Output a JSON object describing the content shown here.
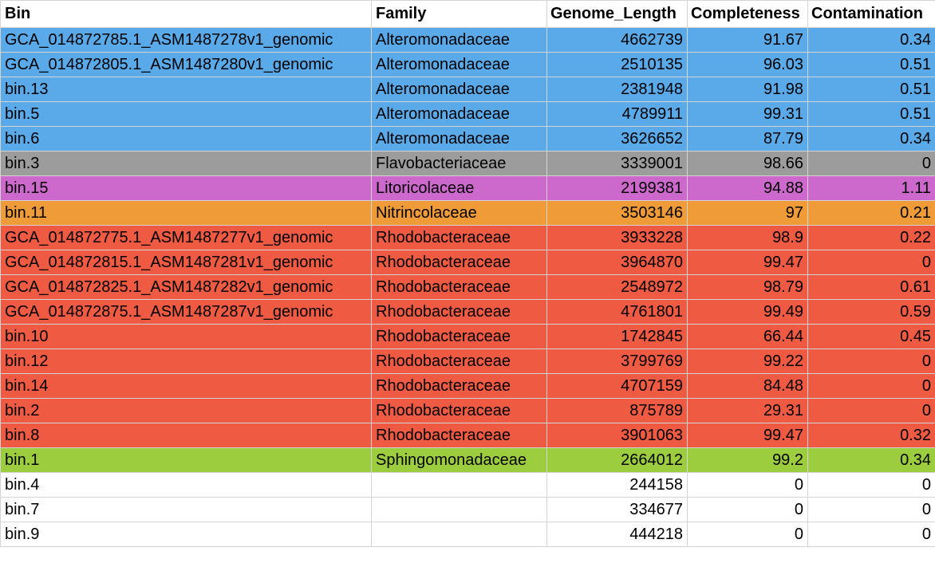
{
  "columns": [
    "Bin",
    "Family",
    "Genome_Length",
    "Completeness",
    "Contamination"
  ],
  "colors": {
    "Alteromonadaceae": "#5aaaea",
    "Flavobacteriaceae": "#9c9c9c",
    "Litoricolaceae": "#cd69cd",
    "Nitrincolaceae": "#ef9b37",
    "Rhodobacteraceae": "#ee5a42",
    "Sphingomonadaceae": "#9ccd3e",
    "none": "#ffffff"
  },
  "rows": [
    {
      "bin": "GCA_014872785.1_ASM1487278v1_genomic",
      "family": "Alteromonadaceae",
      "genome_length": "4662739",
      "completeness": "91.67",
      "contamination": "0.34",
      "color": "#5aaaea"
    },
    {
      "bin": "GCA_014872805.1_ASM1487280v1_genomic",
      "family": "Alteromonadaceae",
      "genome_length": "2510135",
      "completeness": "96.03",
      "contamination": "0.51",
      "color": "#5aaaea"
    },
    {
      "bin": "bin.13",
      "family": "Alteromonadaceae",
      "genome_length": "2381948",
      "completeness": "91.98",
      "contamination": "0.51",
      "color": "#5aaaea"
    },
    {
      "bin": "bin.5",
      "family": "Alteromonadaceae",
      "genome_length": "4789911",
      "completeness": "99.31",
      "contamination": "0.51",
      "color": "#5aaaea"
    },
    {
      "bin": "bin.6",
      "family": "Alteromonadaceae",
      "genome_length": "3626652",
      "completeness": "87.79",
      "contamination": "0.34",
      "color": "#5aaaea"
    },
    {
      "bin": "bin.3",
      "family": "Flavobacteriaceae",
      "genome_length": "3339001",
      "completeness": "98.66",
      "contamination": "0",
      "color": "#9c9c9c"
    },
    {
      "bin": "bin.15",
      "family": "Litoricolaceae",
      "genome_length": "2199381",
      "completeness": "94.88",
      "contamination": "1.11",
      "color": "#cd69cd"
    },
    {
      "bin": "bin.11",
      "family": "Nitrincolaceae",
      "genome_length": "3503146",
      "completeness": "97",
      "contamination": "0.21",
      "color": "#ef9b37"
    },
    {
      "bin": "GCA_014872775.1_ASM1487277v1_genomic",
      "family": "Rhodobacteraceae",
      "genome_length": "3933228",
      "completeness": "98.9",
      "contamination": "0.22",
      "color": "#ee5a42"
    },
    {
      "bin": "GCA_014872815.1_ASM1487281v1_genomic",
      "family": "Rhodobacteraceae",
      "genome_length": "3964870",
      "completeness": "99.47",
      "contamination": "0",
      "color": "#ee5a42"
    },
    {
      "bin": "GCA_014872825.1_ASM1487282v1_genomic",
      "family": "Rhodobacteraceae",
      "genome_length": "2548972",
      "completeness": "98.79",
      "contamination": "0.61",
      "color": "#ee5a42"
    },
    {
      "bin": "GCA_014872875.1_ASM1487287v1_genomic",
      "family": "Rhodobacteraceae",
      "genome_length": "4761801",
      "completeness": "99.49",
      "contamination": "0.59",
      "color": "#ee5a42"
    },
    {
      "bin": "bin.10",
      "family": "Rhodobacteraceae",
      "genome_length": "1742845",
      "completeness": "66.44",
      "contamination": "0.45",
      "color": "#ee5a42"
    },
    {
      "bin": "bin.12",
      "family": "Rhodobacteraceae",
      "genome_length": "3799769",
      "completeness": "99.22",
      "contamination": "0",
      "color": "#ee5a42"
    },
    {
      "bin": "bin.14",
      "family": "Rhodobacteraceae",
      "genome_length": "4707159",
      "completeness": "84.48",
      "contamination": "0",
      "color": "#ee5a42"
    },
    {
      "bin": "bin.2",
      "family": "Rhodobacteraceae",
      "genome_length": "875789",
      "completeness": "29.31",
      "contamination": "0",
      "color": "#ee5a42"
    },
    {
      "bin": "bin.8",
      "family": "Rhodobacteraceae",
      "genome_length": "3901063",
      "completeness": "99.47",
      "contamination": "0.32",
      "color": "#ee5a42"
    },
    {
      "bin": "bin.1",
      "family": "Sphingomonadaceae",
      "genome_length": "2664012",
      "completeness": "99.2",
      "contamination": "0.34",
      "color": "#9ccd3e"
    },
    {
      "bin": "bin.4",
      "family": "",
      "genome_length": "244158",
      "completeness": "0",
      "contamination": "0",
      "color": "#ffffff"
    },
    {
      "bin": "bin.7",
      "family": "",
      "genome_length": "334677",
      "completeness": "0",
      "contamination": "0",
      "color": "#ffffff"
    },
    {
      "bin": "bin.9",
      "family": "",
      "genome_length": "444218",
      "completeness": "0",
      "contamination": "0",
      "color": "#ffffff"
    }
  ]
}
